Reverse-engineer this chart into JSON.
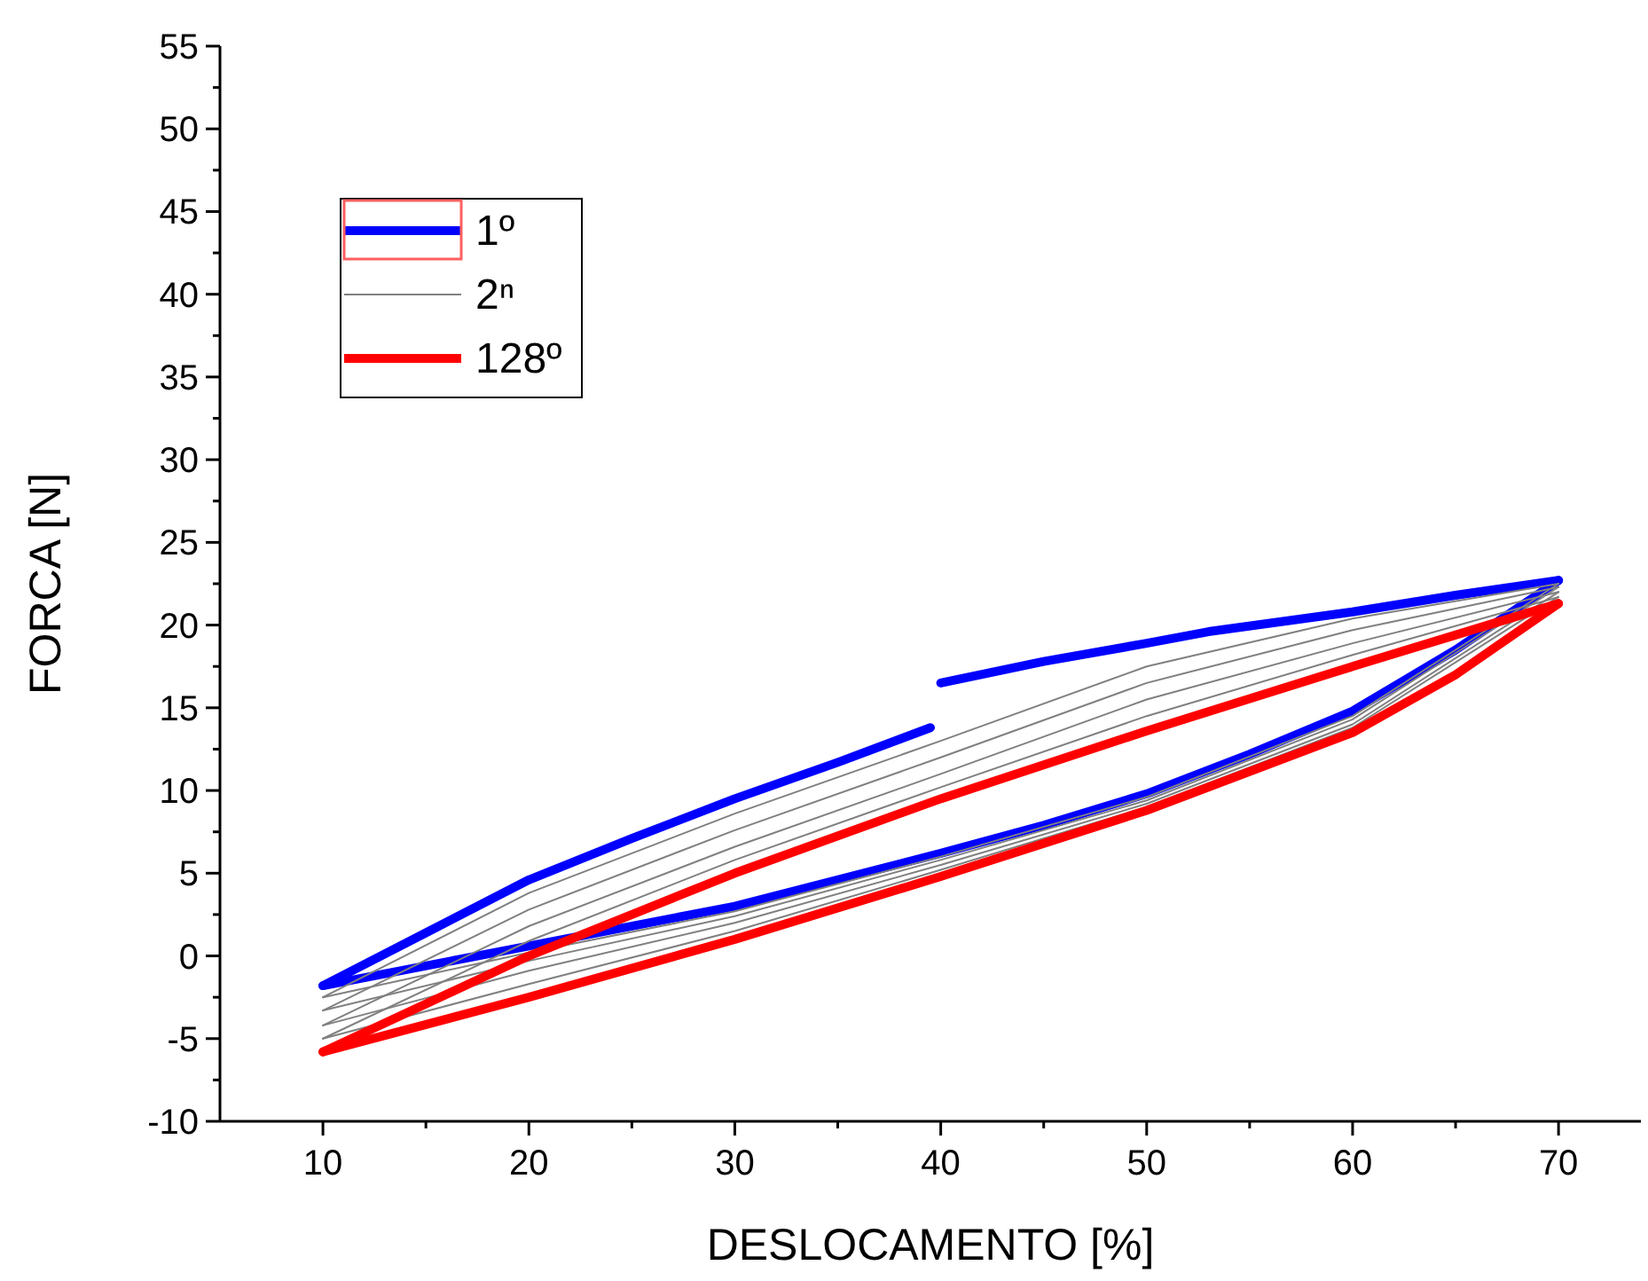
{
  "chart_data": {
    "type": "line",
    "xlabel": "DESLOCAMENTO [%]",
    "ylabel": "FORCA [N]",
    "xlim": [
      5,
      74
    ],
    "ylim": [
      -10,
      55
    ],
    "xticks": [
      10,
      {
        "value": 15,
        "label": null
      },
      20,
      {
        "value": 25,
        "label": null
      },
      30,
      {
        "value": 35,
        "label": null
      },
      40,
      {
        "value": 45,
        "label": null
      },
      50,
      {
        "value": 55,
        "label": null
      },
      60,
      {
        "value": 65,
        "label": null
      },
      70
    ],
    "yticks": [
      -10,
      {
        "value": -7.5,
        "label": null
      },
      -5,
      {
        "value": -2.5,
        "label": null
      },
      0,
      {
        "value": 2.5,
        "label": null
      },
      5,
      {
        "value": 7.5,
        "label": null
      },
      10,
      {
        "value": 12.5,
        "label": null
      },
      15,
      {
        "value": 17.5,
        "label": null
      },
      20,
      {
        "value": 22.5,
        "label": null
      },
      25,
      {
        "value": 27.5,
        "label": null
      },
      30,
      {
        "value": 32.5,
        "label": null
      },
      35,
      {
        "value": 37.5,
        "label": null
      },
      40,
      {
        "value": 42.5,
        "label": null
      },
      45,
      {
        "value": 47.5,
        "label": null
      },
      50,
      {
        "value": 52.5,
        "label": null
      },
      55
    ],
    "grid": false,
    "legend": "top left",
    "marker": "none",
    "line_style": "solid",
    "series": [
      {
        "name": "1º",
        "color": "#0000ff",
        "x": [
          10,
          15,
          20,
          25,
          30,
          35,
          39.5
        ],
        "values": [
          -1.8,
          1.4,
          4.6,
          7.1,
          9.5,
          11.7,
          13.8
        ]
      },
      {
        "color": "#0000ff",
        "x": [
          40,
          45,
          50,
          53,
          60,
          65,
          70
        ],
        "values": [
          16.5,
          17.8,
          18.9,
          19.6,
          20.8,
          21.8,
          22.7
        ]
      },
      {
        "color": "#0000ff",
        "x": [
          10,
          20,
          30,
          40,
          45,
          50,
          55,
          60,
          65,
          70
        ],
        "values": [
          -1.8,
          0.6,
          3.0,
          6.2,
          7.9,
          9.8,
          12.2,
          14.8,
          18.5,
          22.7
        ]
      },
      {
        "name": "2ⁿ",
        "color": "#808080",
        "x": [
          10,
          20,
          30,
          40,
          50,
          60,
          70
        ],
        "values": [
          -2.5,
          3.8,
          8.6,
          13.0,
          17.5,
          20.4,
          22.5
        ]
      },
      {
        "color": "#808080",
        "x": [
          10,
          20,
          30,
          40,
          50,
          60,
          70
        ],
        "values": [
          -2.5,
          0.2,
          2.7,
          6.0,
          9.6,
          14.5,
          22.5
        ]
      },
      {
        "color": "#808080",
        "x": [
          10,
          20,
          30,
          40,
          50,
          60,
          70
        ],
        "values": [
          -3.3,
          2.8,
          7.6,
          12.0,
          16.5,
          19.7,
          22.3
        ]
      },
      {
        "color": "#808080",
        "x": [
          10,
          20,
          30,
          40,
          50,
          60,
          70
        ],
        "values": [
          -3.3,
          -0.3,
          2.4,
          5.8,
          9.4,
          14.3,
          22.3
        ]
      },
      {
        "color": "#808080",
        "x": [
          10,
          20,
          30,
          40,
          50,
          60,
          70
        ],
        "values": [
          -4.2,
          1.8,
          6.6,
          11.0,
          15.5,
          18.9,
          22.0
        ]
      },
      {
        "color": "#808080",
        "x": [
          10,
          20,
          30,
          40,
          50,
          60,
          70
        ],
        "values": [
          -4.2,
          -0.9,
          2.0,
          5.5,
          9.2,
          14.0,
          22.0
        ]
      },
      {
        "color": "#808080",
        "x": [
          10,
          20,
          30,
          40,
          50,
          60,
          70
        ],
        "values": [
          -5.0,
          0.9,
          5.8,
          10.2,
          14.5,
          18.2,
          21.7
        ]
      },
      {
        "color": "#808080",
        "x": [
          10,
          20,
          30,
          40,
          50,
          60,
          70
        ],
        "values": [
          -5.0,
          -1.7,
          1.5,
          5.2,
          9.0,
          13.8,
          21.7
        ]
      },
      {
        "name": "128º",
        "color": "#ff0000",
        "x": [
          10,
          20,
          30,
          40,
          50,
          60,
          70
        ],
        "values": [
          -5.8,
          0.0,
          5.0,
          9.5,
          13.6,
          17.5,
          21.3
        ]
      },
      {
        "color": "#ff0000",
        "x": [
          10,
          20,
          30,
          40,
          50,
          60,
          65,
          70
        ],
        "values": [
          -5.8,
          -2.5,
          1.0,
          4.8,
          8.8,
          13.5,
          17.0,
          21.3
        ]
      }
    ]
  }
}
